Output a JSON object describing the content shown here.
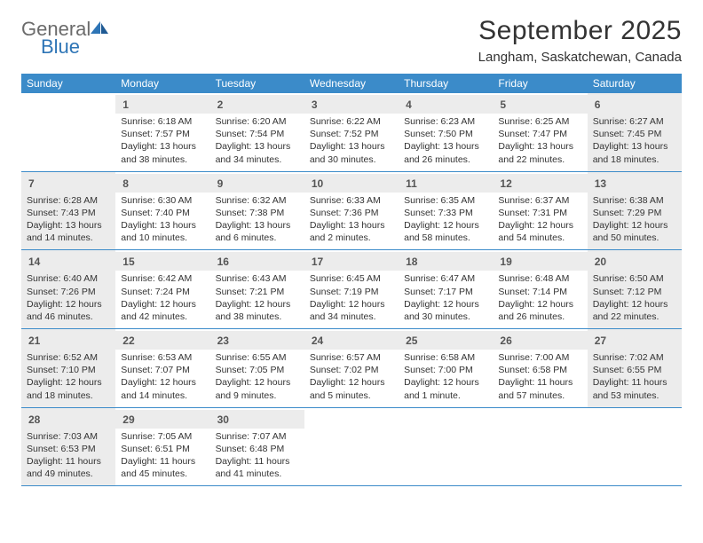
{
  "logo": {
    "word1": "General",
    "word2": "Blue"
  },
  "title": "September 2025",
  "location": "Langham, Saskatchewan, Canada",
  "colors": {
    "header_bar": "#3b8bc9",
    "shaded_bg": "#ececec",
    "text": "#333333",
    "logo_grey": "#6b6b6b",
    "logo_blue": "#2e75b6"
  },
  "weekdays": [
    "Sunday",
    "Monday",
    "Tuesday",
    "Wednesday",
    "Thursday",
    "Friday",
    "Saturday"
  ],
  "weeks": [
    [
      null,
      {
        "n": "1",
        "sr": "6:18 AM",
        "ss": "7:57 PM",
        "dl": "13 hours and 38 minutes."
      },
      {
        "n": "2",
        "sr": "6:20 AM",
        "ss": "7:54 PM",
        "dl": "13 hours and 34 minutes."
      },
      {
        "n": "3",
        "sr": "6:22 AM",
        "ss": "7:52 PM",
        "dl": "13 hours and 30 minutes."
      },
      {
        "n": "4",
        "sr": "6:23 AM",
        "ss": "7:50 PM",
        "dl": "13 hours and 26 minutes."
      },
      {
        "n": "5",
        "sr": "6:25 AM",
        "ss": "7:47 PM",
        "dl": "13 hours and 22 minutes."
      },
      {
        "n": "6",
        "sr": "6:27 AM",
        "ss": "7:45 PM",
        "dl": "13 hours and 18 minutes."
      }
    ],
    [
      {
        "n": "7",
        "sr": "6:28 AM",
        "ss": "7:43 PM",
        "dl": "13 hours and 14 minutes."
      },
      {
        "n": "8",
        "sr": "6:30 AM",
        "ss": "7:40 PM",
        "dl": "13 hours and 10 minutes."
      },
      {
        "n": "9",
        "sr": "6:32 AM",
        "ss": "7:38 PM",
        "dl": "13 hours and 6 minutes."
      },
      {
        "n": "10",
        "sr": "6:33 AM",
        "ss": "7:36 PM",
        "dl": "13 hours and 2 minutes."
      },
      {
        "n": "11",
        "sr": "6:35 AM",
        "ss": "7:33 PM",
        "dl": "12 hours and 58 minutes."
      },
      {
        "n": "12",
        "sr": "6:37 AM",
        "ss": "7:31 PM",
        "dl": "12 hours and 54 minutes."
      },
      {
        "n": "13",
        "sr": "6:38 AM",
        "ss": "7:29 PM",
        "dl": "12 hours and 50 minutes."
      }
    ],
    [
      {
        "n": "14",
        "sr": "6:40 AM",
        "ss": "7:26 PM",
        "dl": "12 hours and 46 minutes."
      },
      {
        "n": "15",
        "sr": "6:42 AM",
        "ss": "7:24 PM",
        "dl": "12 hours and 42 minutes."
      },
      {
        "n": "16",
        "sr": "6:43 AM",
        "ss": "7:21 PM",
        "dl": "12 hours and 38 minutes."
      },
      {
        "n": "17",
        "sr": "6:45 AM",
        "ss": "7:19 PM",
        "dl": "12 hours and 34 minutes."
      },
      {
        "n": "18",
        "sr": "6:47 AM",
        "ss": "7:17 PM",
        "dl": "12 hours and 30 minutes."
      },
      {
        "n": "19",
        "sr": "6:48 AM",
        "ss": "7:14 PM",
        "dl": "12 hours and 26 minutes."
      },
      {
        "n": "20",
        "sr": "6:50 AM",
        "ss": "7:12 PM",
        "dl": "12 hours and 22 minutes."
      }
    ],
    [
      {
        "n": "21",
        "sr": "6:52 AM",
        "ss": "7:10 PM",
        "dl": "12 hours and 18 minutes."
      },
      {
        "n": "22",
        "sr": "6:53 AM",
        "ss": "7:07 PM",
        "dl": "12 hours and 14 minutes."
      },
      {
        "n": "23",
        "sr": "6:55 AM",
        "ss": "7:05 PM",
        "dl": "12 hours and 9 minutes."
      },
      {
        "n": "24",
        "sr": "6:57 AM",
        "ss": "7:02 PM",
        "dl": "12 hours and 5 minutes."
      },
      {
        "n": "25",
        "sr": "6:58 AM",
        "ss": "7:00 PM",
        "dl": "12 hours and 1 minute."
      },
      {
        "n": "26",
        "sr": "7:00 AM",
        "ss": "6:58 PM",
        "dl": "11 hours and 57 minutes."
      },
      {
        "n": "27",
        "sr": "7:02 AM",
        "ss": "6:55 PM",
        "dl": "11 hours and 53 minutes."
      }
    ],
    [
      {
        "n": "28",
        "sr": "7:03 AM",
        "ss": "6:53 PM",
        "dl": "11 hours and 49 minutes."
      },
      {
        "n": "29",
        "sr": "7:05 AM",
        "ss": "6:51 PM",
        "dl": "11 hours and 45 minutes."
      },
      {
        "n": "30",
        "sr": "7:07 AM",
        "ss": "6:48 PM",
        "dl": "11 hours and 41 minutes."
      },
      null,
      null,
      null,
      null
    ]
  ],
  "labels": {
    "sunrise": "Sunrise:",
    "sunset": "Sunset:",
    "daylight": "Daylight:"
  }
}
